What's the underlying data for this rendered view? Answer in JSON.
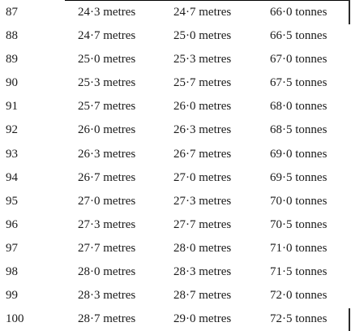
{
  "table": {
    "rows": [
      {
        "number": "87",
        "length_a": "24·3 metres",
        "length_b": "24·7 metres",
        "mass": "66·0 tonnes"
      },
      {
        "number": "88",
        "length_a": "24·7 metres",
        "length_b": "25·0 metres",
        "mass": "66·5 tonnes"
      },
      {
        "number": "89",
        "length_a": "25·0 metres",
        "length_b": "25·3 metres",
        "mass": "67·0 tonnes"
      },
      {
        "number": "90",
        "length_a": "25·3 metres",
        "length_b": "25·7 metres",
        "mass": "67·5 tonnes"
      },
      {
        "number": "91",
        "length_a": "25·7 metres",
        "length_b": "26·0 metres",
        "mass": "68·0 tonnes"
      },
      {
        "number": "92",
        "length_a": "26·0 metres",
        "length_b": "26·3 metres",
        "mass": "68·5 tonnes"
      },
      {
        "number": "93",
        "length_a": "26·3 metres",
        "length_b": "26·7 metres",
        "mass": "69·0 tonnes"
      },
      {
        "number": "94",
        "length_a": "26·7 metres",
        "length_b": "27·0 metres",
        "mass": "69·5 tonnes"
      },
      {
        "number": "95",
        "length_a": "27·0 metres",
        "length_b": "27·3 metres",
        "mass": "70·0 tonnes"
      },
      {
        "number": "96",
        "length_a": "27·3 metres",
        "length_b": "27·7 metres",
        "mass": "70·5 tonnes"
      },
      {
        "number": "97",
        "length_a": "27·7 metres",
        "length_b": "28·0 metres",
        "mass": "71·0 tonnes"
      },
      {
        "number": "98",
        "length_a": "28·0 metres",
        "length_b": "28·3 metres",
        "mass": "71·5 tonnes"
      },
      {
        "number": "99",
        "length_a": "28·3 metres",
        "length_b": "28·7 metres",
        "mass": "72·0 tonnes"
      },
      {
        "number": "100",
        "length_a": "28·7 metres",
        "length_b": "29·0 metres",
        "mass": "72·5 tonnes"
      }
    ]
  }
}
